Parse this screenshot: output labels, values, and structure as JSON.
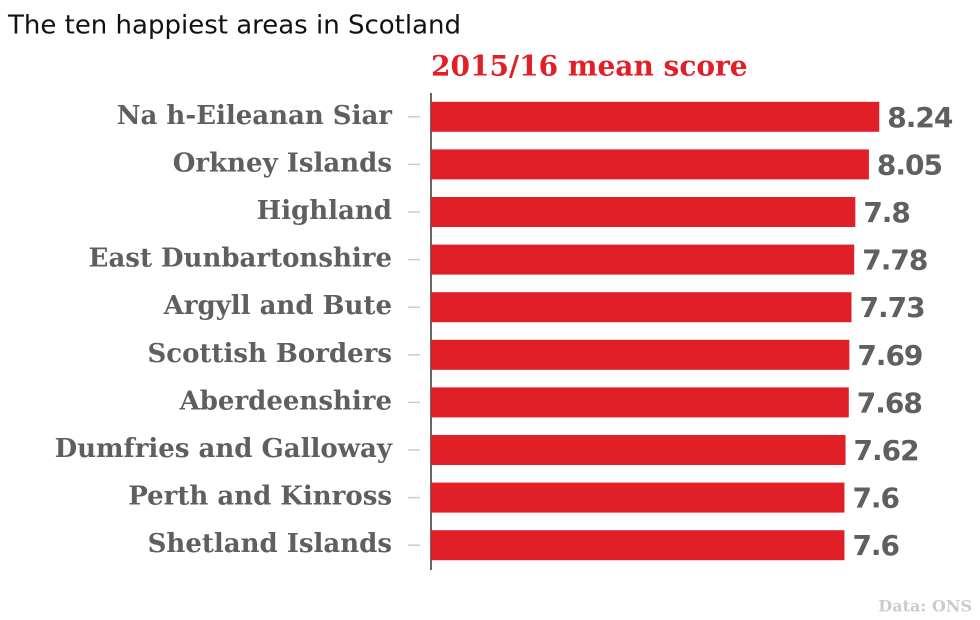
{
  "chart_data": {
    "type": "bar",
    "orientation": "horizontal",
    "title": "The ten happiest areas in Scotland",
    "subtitle": "2015/16 mean score",
    "source": "Data: ONS",
    "categories": [
      "Na h-Eileanan Siar",
      "Orkney Islands",
      "Highland",
      "East Dunbartonshire",
      "Argyll and Bute",
      "Scottish Borders",
      "Aberdeenshire",
      "Dumfries and Galloway",
      "Perth and Kinross",
      "Shetland Islands"
    ],
    "values": [
      8.24,
      8.05,
      7.8,
      7.78,
      7.73,
      7.69,
      7.68,
      7.62,
      7.6,
      7.6
    ],
    "color": "#e01f26",
    "xlim": [
      0,
      10
    ]
  }
}
